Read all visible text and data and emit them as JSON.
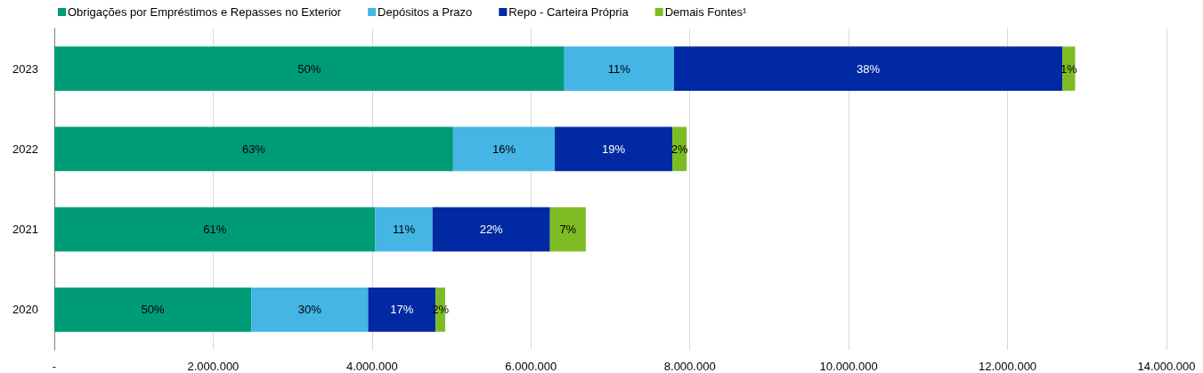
{
  "chart_data": {
    "type": "bar",
    "orientation": "horizontal",
    "stacked": true,
    "categories": [
      "2023",
      "2022",
      "2021",
      "2020"
    ],
    "series": [
      {
        "name": "Obrigações por Empréstimos e Repasses no Exterior",
        "color": "#009b77",
        "values": [
          6420000,
          5020000,
          4040000,
          2480000
        ]
      },
      {
        "name": "Depósitos a Prazo",
        "color": "#45b5e6",
        "values": [
          1380000,
          1280000,
          720000,
          1470000
        ]
      },
      {
        "name": "Repo - Carteira Própria",
        "color": "#0029a3",
        "values": [
          4890000,
          1480000,
          1480000,
          850000
        ]
      },
      {
        "name": "Demais Fontes¹",
        "color": "#7dbc22",
        "values": [
          160000,
          180000,
          450000,
          120000
        ]
      }
    ],
    "annotations": [
      "50%",
      "11%",
      "38%",
      "1%",
      "63%",
      "16%",
      "19%",
      "2%",
      "61%",
      "11%",
      "22%",
      "7%",
      "50%",
      "30%",
      "17%",
      "2%"
    ],
    "xlim": [
      0,
      14000000
    ],
    "xticks": [
      {
        "value": 0,
        "label": "-"
      },
      {
        "value": 2000000,
        "label": "2.000.000"
      },
      {
        "value": 4000000,
        "label": "4.000.000"
      },
      {
        "value": 6000000,
        "label": "6.000.000"
      },
      {
        "value": 8000000,
        "label": "8.000.000"
      },
      {
        "value": 10000000,
        "label": "10.000.000"
      },
      {
        "value": 12000000,
        "label": "12.000.000"
      },
      {
        "value": 14000000,
        "label": "14.000.000"
      }
    ],
    "grid": "x",
    "legend": "top left"
  }
}
